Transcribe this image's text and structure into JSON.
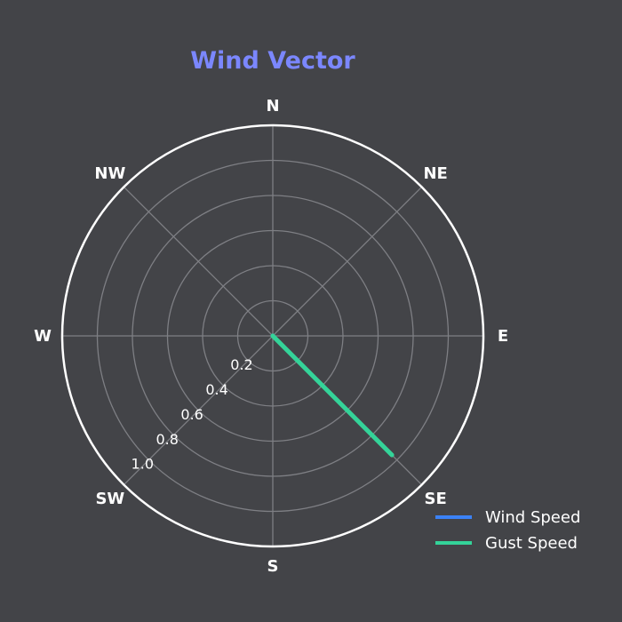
{
  "chart_data": {
    "type": "polar-line",
    "title": "Wind Vector",
    "directions": [
      "N",
      "NE",
      "E",
      "SE",
      "S",
      "SW",
      "W",
      "NW"
    ],
    "radial_ticks": [
      "0.2",
      "0.4",
      "0.6",
      "0.8",
      "1.0"
    ],
    "rlim": [
      0,
      1.2
    ],
    "grid": true,
    "series": [
      {
        "name": "Wind Speed",
        "color": "#3b82f6",
        "points": [
          {
            "direction_deg": 135,
            "r": 0
          },
          {
            "direction_deg": 135,
            "r": 0.0
          }
        ]
      },
      {
        "name": "Gust Speed",
        "color": "#34d399",
        "points": [
          {
            "direction_deg": 135,
            "r": 0
          },
          {
            "direction_deg": 135,
            "r": 0.96
          }
        ]
      }
    ],
    "legend": "bottom-right",
    "colors": {
      "background": "#434448",
      "title": "#7b87ff",
      "grid": "#7e7f84",
      "frame": "#ffffff"
    }
  }
}
